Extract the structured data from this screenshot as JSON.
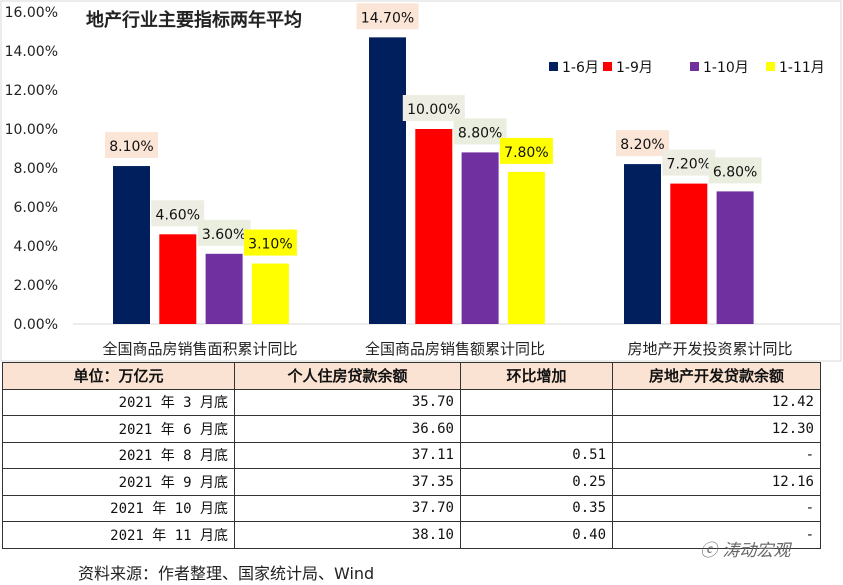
{
  "chart_data": {
    "type": "bar",
    "title": "地产行业主要指标两年平均",
    "categories": [
      "全国商品房销售面积累计同比",
      "全国商品房销售额累计同比",
      "房地产开发投资累计同比"
    ],
    "series": [
      {
        "name": "1-6月",
        "color": "#001F5C",
        "label_bg": "#FBE5D6",
        "values": [
          8.1,
          14.7,
          8.2
        ]
      },
      {
        "name": "1-9月",
        "color": "#FF0000",
        "label_bg": "#EDEDE3",
        "values": [
          4.6,
          10.0,
          7.2
        ]
      },
      {
        "name": "1-10月",
        "color": "#7030A0",
        "label_bg": "#E9EEDF",
        "values": [
          3.6,
          8.8,
          6.8
        ]
      },
      {
        "name": "1-11月",
        "color": "#FFFF00",
        "label_bg": "#FFFF00",
        "values": [
          3.1,
          7.8,
          null
        ]
      }
    ],
    "data_labels": [
      [
        "8.10%",
        "14.70%",
        "8.20%"
      ],
      [
        "4.60%",
        "10.00%",
        "7.20%"
      ],
      [
        "3.60%",
        "8.80%",
        "6.80%"
      ],
      [
        "3.10%",
        "7.80%",
        null
      ]
    ],
    "yticks": [
      "0.00%",
      "2.00%",
      "4.00%",
      "6.00%",
      "8.00%",
      "10.00%",
      "12.00%",
      "14.00%",
      "16.00%"
    ],
    "ylim": [
      0,
      16
    ],
    "yunit": "%",
    "grid": false,
    "legend": "top-right"
  },
  "table": {
    "headers": [
      "单位：万亿元",
      "个人住房贷款余额",
      "环比增加",
      "房地产开发贷款余额"
    ],
    "rows": [
      [
        "2021 年 3 月底",
        "35.70",
        "",
        "12.42"
      ],
      [
        "2021 年 6 月底",
        "36.60",
        "",
        "12.30"
      ],
      [
        "2021 年 8 月底",
        "37.11",
        "0.51",
        "-"
      ],
      [
        "2021 年 9 月底",
        "37.35",
        "0.25",
        "12.16"
      ],
      [
        "2021 年 10 月底",
        "37.70",
        "0.35",
        "-"
      ],
      [
        "2021 年 11 月底",
        "38.10",
        "0.40",
        "-"
      ]
    ]
  },
  "source": "资料来源：作者整理、国家统计局、Wind",
  "watermark": "涛动宏观"
}
